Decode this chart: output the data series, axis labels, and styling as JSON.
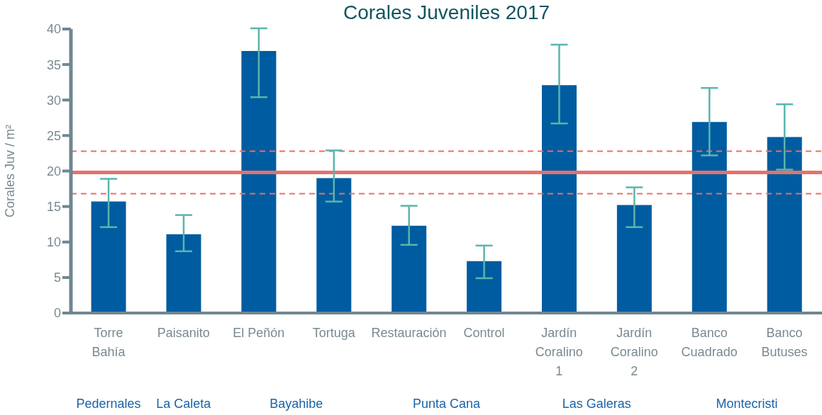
{
  "chart_data": {
    "type": "bar",
    "title": "Corales Juveniles 2017",
    "ylabel": "Corales Juv / m²",
    "categories": [
      "Torre\nBahía",
      "Paisanito",
      "El Peñón",
      "Tortuga",
      "Restauración",
      "Control",
      "Jardín\nCoralino\n1",
      "Jardín\nCoralino\n2",
      "Banco\nCuadrado",
      "Banco\nButuses"
    ],
    "values": [
      15.7,
      11.1,
      36.9,
      19.0,
      12.3,
      7.3,
      32.1,
      15.2,
      26.9,
      24.8
    ],
    "errors": [
      [
        12.1,
        18.9
      ],
      [
        8.7,
        13.8
      ],
      [
        30.4,
        40.1
      ],
      [
        15.7,
        22.9
      ],
      [
        9.6,
        15.1
      ],
      [
        4.9,
        9.5
      ],
      [
        26.7,
        37.8
      ],
      [
        12.1,
        17.7
      ],
      [
        22.2,
        31.7
      ],
      [
        20.2,
        29.4
      ]
    ],
    "color": "#005ca0",
    "ylim": [
      0,
      40
    ],
    "yticks": [
      0,
      5,
      10,
      15,
      20,
      25,
      30,
      35,
      40
    ],
    "grid": false,
    "legend": false,
    "ref_lines": [
      {
        "axis": "y",
        "value": 19.8,
        "color": "#e5716a",
        "line_style": "solid"
      },
      {
        "axis": "y",
        "value": 22.8,
        "color": "#e5716a",
        "line_style": "dashed"
      },
      {
        "axis": "y",
        "value": 16.8,
        "color": "#e5716a",
        "line_style": "dashed"
      }
    ],
    "annotations": [
      "Pedernales",
      "La Caleta",
      "Bayahibe",
      "Punta Cana",
      "Las Galeras",
      "Montecristi"
    ]
  }
}
